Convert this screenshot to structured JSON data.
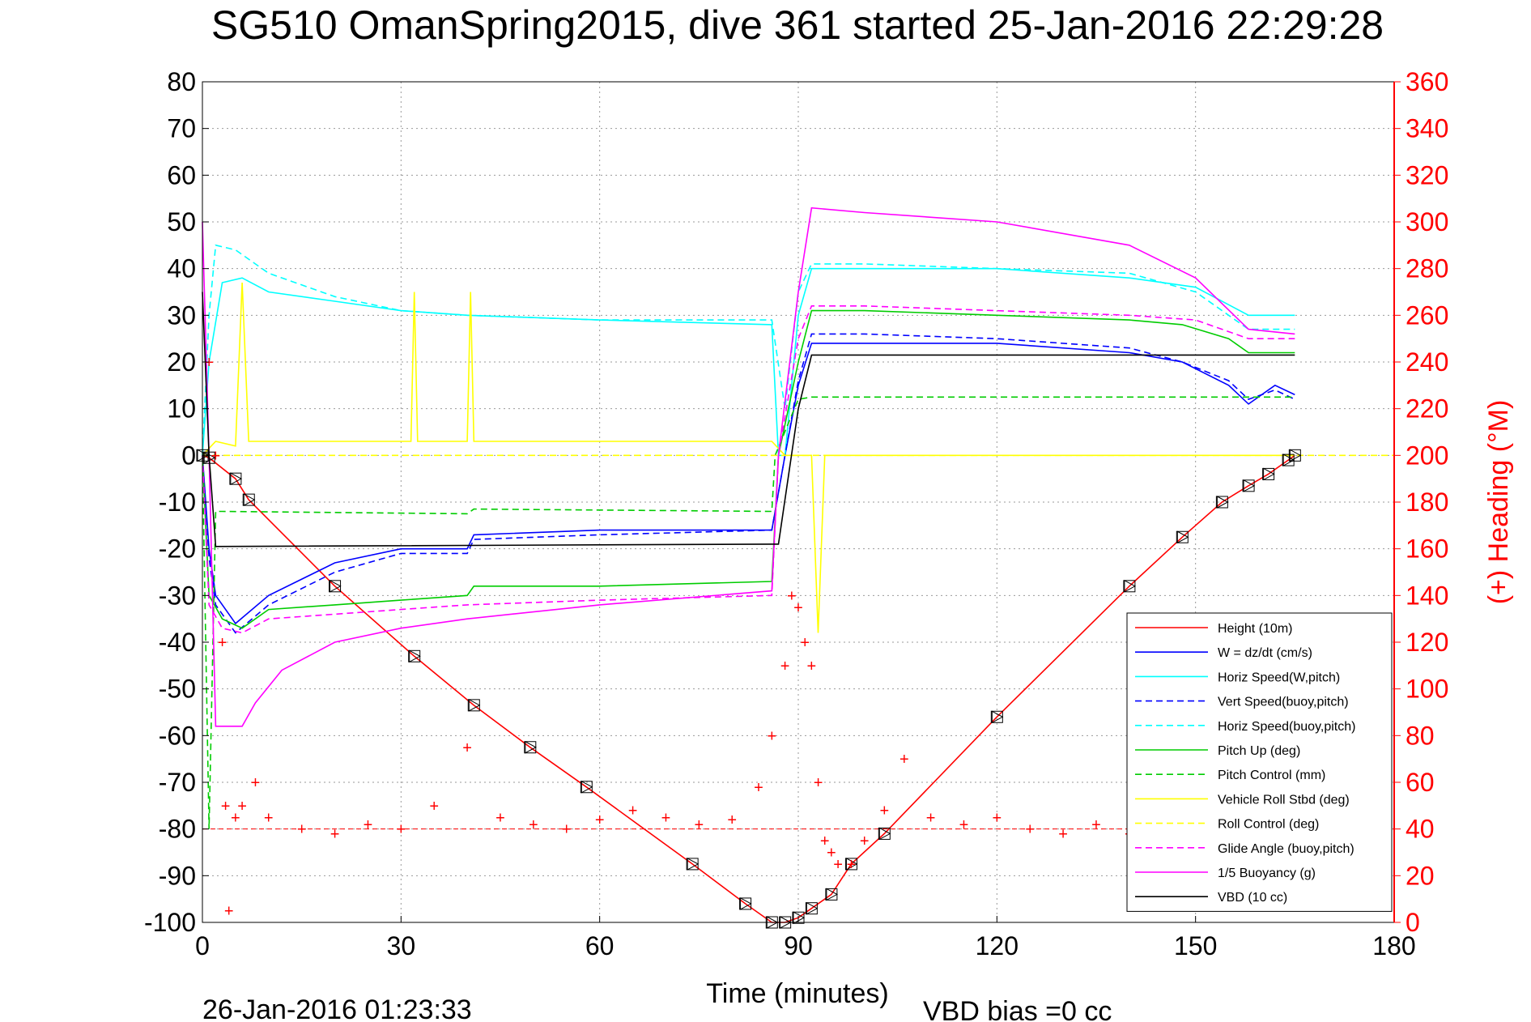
{
  "chart_data": {
    "type": "line",
    "title": "SG510 OmanSpring2015, dive 361 started 25-Jan-2016 22:29:28",
    "xlabel": "Time (minutes)",
    "ylabel_right": "(+) Heading (°M)",
    "xlim": [
      0,
      180
    ],
    "ylim": [
      -100,
      80
    ],
    "ylim_right": [
      0,
      360
    ],
    "x_ticks": [
      "0",
      "30",
      "60",
      "90",
      "120",
      "150",
      "180"
    ],
    "y_ticks": [
      "80",
      "70",
      "60",
      "50",
      "40",
      "30",
      "20",
      "10",
      "0",
      "-10",
      "-20",
      "-30",
      "-40",
      "-50",
      "-60",
      "-70",
      "-80",
      "-90",
      "-100"
    ],
    "y_ticks_right": [
      "360",
      "340",
      "320",
      "300",
      "280",
      "260",
      "240",
      "220",
      "200",
      "180",
      "160",
      "140",
      "120",
      "100",
      "80",
      "60",
      "40",
      "20",
      "0"
    ],
    "grid": true,
    "legend_position": "lower-right",
    "footer_timestamp": "26-Jan-2016 01:23:33",
    "footer_note": "VBD bias =0 cc",
    "heading_reference": 40,
    "series": [
      {
        "name": "Height (10m)",
        "color": "#ff0000",
        "style": "solid",
        "x": [
          0,
          1,
          5,
          7,
          20,
          32,
          41,
          49.5,
          58,
          74,
          82,
          86,
          88,
          90,
          92,
          95,
          98,
          103,
          120,
          140,
          148,
          154,
          158,
          161,
          164,
          165
        ],
        "y": [
          0,
          -0.5,
          -5,
          -9.5,
          -28,
          -43,
          -53.5,
          -62.5,
          -71,
          -87.5,
          -96,
          -100,
          -100,
          -99,
          -97,
          -94,
          -87.5,
          -81,
          -56,
          -28,
          -17.5,
          -10,
          -6.5,
          -4,
          -1,
          0
        ]
      },
      {
        "name": "W = dz/dt (cm/s)",
        "color": "#0000ff",
        "style": "solid",
        "x": [
          0,
          1,
          2,
          5,
          10,
          20,
          30,
          40,
          41,
          60,
          86,
          88,
          90,
          92,
          100,
          120,
          140,
          148,
          155,
          158,
          162,
          165
        ],
        "y": [
          0,
          -20,
          -30,
          -36,
          -30,
          -23,
          -20,
          -20,
          -17,
          -16,
          -16,
          0,
          15,
          24,
          24,
          24,
          22,
          20,
          15,
          11,
          15,
          13
        ]
      },
      {
        "name": "Horiz Speed(W,pitch)",
        "color": "#00ffff",
        "style": "solid",
        "x": [
          0,
          1,
          3,
          6,
          10,
          20,
          30,
          40,
          60,
          86,
          87,
          88,
          90,
          92,
          100,
          120,
          140,
          150,
          158,
          165
        ],
        "y": [
          0,
          20,
          37,
          38,
          35,
          33,
          31,
          30,
          29,
          28,
          0,
          0,
          30,
          40,
          40,
          40,
          38,
          36,
          30,
          30
        ]
      },
      {
        "name": "Vert Speed(buoy,pitch)",
        "color": "#0000ff",
        "style": "dashed",
        "x": [
          0,
          1,
          2,
          5,
          10,
          20,
          30,
          40,
          41,
          60,
          86,
          88,
          90,
          92,
          100,
          120,
          140,
          148,
          155,
          158,
          162,
          165
        ],
        "y": [
          0,
          -22,
          -32,
          -38,
          -32,
          -25,
          -21,
          -21,
          -18,
          -17,
          -16,
          0,
          16,
          26,
          26,
          25,
          23,
          20,
          16,
          12,
          14,
          12
        ]
      },
      {
        "name": "Horiz Speed(buoy,pitch)",
        "color": "#00ffff",
        "style": "dashed",
        "x": [
          0,
          1,
          2,
          5,
          10,
          20,
          30,
          40,
          60,
          86,
          88,
          90,
          92,
          100,
          120,
          140,
          150,
          158,
          165
        ],
        "y": [
          0,
          30,
          45,
          44,
          39,
          34,
          31,
          30,
          29,
          29,
          10,
          35,
          41,
          41,
          40,
          39,
          35,
          27,
          27
        ]
      },
      {
        "name": "Pitch Up (deg)",
        "color": "#00cc00",
        "style": "solid",
        "x": [
          0,
          1,
          3,
          6,
          10,
          20,
          30,
          40,
          41,
          60,
          86,
          87,
          90,
          92,
          100,
          120,
          140,
          148,
          155,
          158,
          165
        ],
        "y": [
          0,
          -30,
          -35,
          -37,
          -33,
          -32,
          -31,
          -30,
          -28,
          -28,
          -27,
          0,
          20,
          31,
          31,
          30,
          29,
          28,
          25,
          22,
          22
        ]
      },
      {
        "name": "Pitch Control (mm)",
        "color": "#00cc00",
        "style": "dashed",
        "x": [
          0,
          1,
          2,
          3,
          40,
          41,
          86,
          86.5,
          90,
          92,
          95,
          140,
          165
        ],
        "y": [
          0,
          -80,
          -12,
          -12,
          -12.5,
          -11.5,
          -12,
          0,
          12,
          12.5,
          12.5,
          12.5,
          12.5
        ]
      },
      {
        "name": "Vehicle Roll Stbd (deg)",
        "color": "#ffff00",
        "style": "solid",
        "x": [
          0,
          2,
          5,
          6,
          7,
          8,
          30,
          31.5,
          32,
          32.5,
          40,
          40.5,
          41,
          60,
          86,
          88,
          90,
          92,
          93,
          94,
          95,
          120,
          140,
          165
        ],
        "y": [
          0,
          3,
          2,
          37,
          3,
          3,
          3,
          3,
          35,
          3,
          3,
          35,
          3,
          3,
          3,
          0,
          0,
          0,
          -38,
          0,
          0,
          0,
          0,
          0
        ]
      },
      {
        "name": "Roll Control (deg)",
        "color": "#ffff00",
        "style": "dashed",
        "x": [
          0,
          180
        ],
        "y": [
          0,
          0
        ]
      },
      {
        "name": "Glide Angle (buoy,pitch)",
        "color": "#ff00ff",
        "style": "dashed",
        "x": [
          0,
          1,
          3,
          6,
          10,
          20,
          30,
          40,
          60,
          86,
          87,
          90,
          92,
          100,
          120,
          140,
          150,
          158,
          165
        ],
        "y": [
          0,
          -32,
          -37,
          -38,
          -35,
          -34,
          -33,
          -32,
          -31,
          -30,
          0,
          25,
          32,
          32,
          31,
          30,
          29,
          25,
          25
        ]
      },
      {
        "name": "1/5 Buoyancy (g)",
        "color": "#ff00ff",
        "style": "solid",
        "x": [
          0,
          1,
          2,
          6,
          8,
          12,
          20,
          30,
          40,
          60,
          86,
          87,
          90,
          92,
          100,
          120,
          140,
          150,
          158,
          165
        ],
        "y": [
          50,
          0,
          -58,
          -58,
          -53,
          -46,
          -40,
          -37,
          -35,
          -32,
          -29,
          0,
          35,
          53,
          52,
          50,
          45,
          38,
          27,
          26
        ]
      },
      {
        "name": "VBD (10 cc)",
        "color": "#000000",
        "style": "solid",
        "x": [
          0,
          1,
          2,
          86,
          87,
          90,
          92,
          165
        ],
        "y": [
          35,
          0,
          -19.5,
          -19,
          -19,
          10,
          21.5,
          21.5
        ]
      }
    ],
    "heading": {
      "name": "(+) Heading",
      "color": "#ff0000",
      "x": [
        1,
        2,
        3,
        3.5,
        4,
        5,
        6,
        8,
        10,
        15,
        20,
        25,
        30,
        35,
        40,
        45,
        50,
        55,
        60,
        65,
        70,
        75,
        80,
        84,
        86,
        88,
        89,
        90,
        91,
        92,
        93,
        94,
        95,
        96,
        98,
        100,
        103,
        106,
        110,
        115,
        120,
        125,
        130,
        135,
        140
      ],
      "y": [
        240,
        200,
        120,
        50,
        5,
        45,
        50,
        60,
        45,
        40,
        38,
        42,
        40,
        50,
        75,
        45,
        42,
        40,
        44,
        48,
        45,
        42,
        44,
        58,
        80,
        110,
        140,
        135,
        120,
        110,
        60,
        35,
        30,
        25,
        25,
        35,
        48,
        70,
        45,
        42,
        45,
        40,
        38,
        42,
        38
      ]
    }
  }
}
